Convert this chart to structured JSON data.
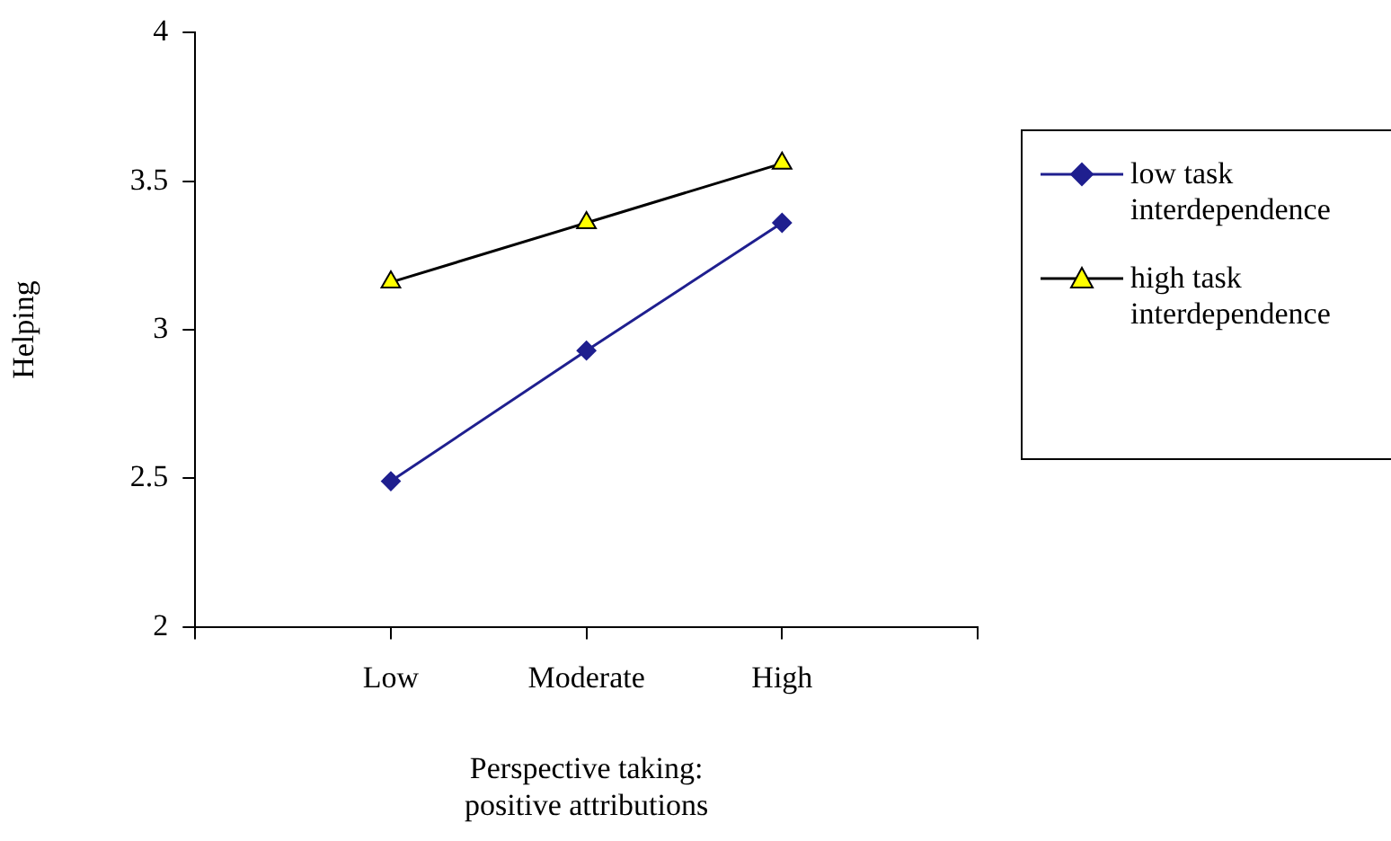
{
  "chart_data": {
    "type": "line",
    "xlabel": "Perspective taking:\npositive attributions",
    "ylabel": "Helping",
    "categories": [
      "Low",
      "Moderate",
      "High"
    ],
    "series": [
      {
        "name": "low task interdependence",
        "color": "#1f1f8f",
        "marker": "diamond",
        "values": [
          2.49,
          2.93,
          3.36
        ]
      },
      {
        "name": "high task interdependence",
        "color": "#000000",
        "marker": "triangle",
        "colors": [
          "#ffff00",
          "#ffff00",
          "#ffff00"
        ],
        "values": [
          3.16,
          3.36,
          3.56
        ]
      }
    ],
    "ylim": [
      2,
      4
    ],
    "yticks": [
      2,
      2.5,
      3,
      3.5,
      4
    ],
    "grid": false,
    "legend": "right"
  }
}
